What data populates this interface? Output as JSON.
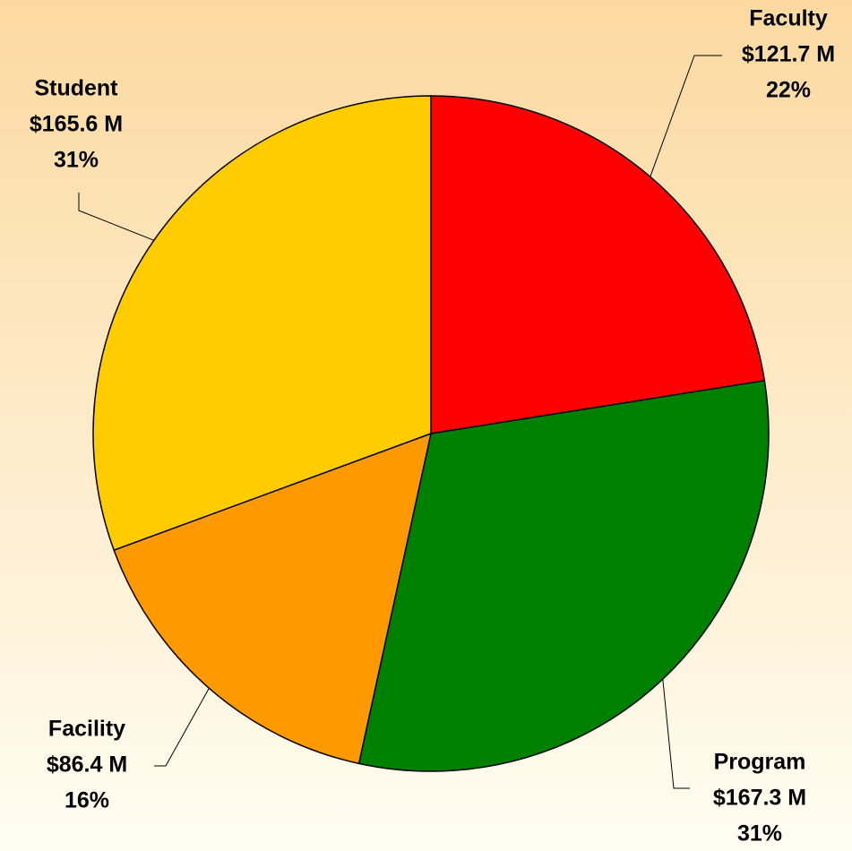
{
  "chart_data": {
    "type": "pie",
    "categories": [
      "Faculty",
      "Program",
      "Facility",
      "Student"
    ],
    "values": [
      121.7,
      167.3,
      86.4,
      165.6
    ],
    "value_labels": [
      "$121.7 M",
      "$167.3 M",
      "$86.4 M",
      "$165.6 M"
    ],
    "percent_labels": [
      "22%",
      "31%",
      "16%",
      "31%"
    ],
    "colors": [
      "#ff0000",
      "#008000",
      "#ff9900",
      "#ffcc00"
    ]
  }
}
